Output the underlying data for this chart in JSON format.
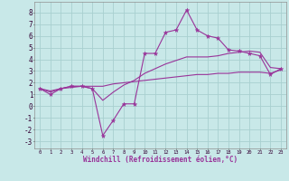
{
  "xlabel": "Windchill (Refroidissement éolien,°C)",
  "background_color": "#c8e8e8",
  "grid_color": "#a8d0d0",
  "line_color": "#993399",
  "x_ticks": [
    0,
    1,
    2,
    3,
    4,
    5,
    6,
    7,
    8,
    9,
    10,
    11,
    12,
    13,
    14,
    15,
    16,
    17,
    18,
    19,
    20,
    21,
    22,
    23
  ],
  "y_ticks": [
    -3,
    -2,
    -1,
    0,
    1,
    2,
    3,
    4,
    5,
    6,
    7,
    8
  ],
  "ylim": [
    -3.6,
    8.9
  ],
  "xlim": [
    -0.5,
    23.5
  ],
  "raw": {
    "x": [
      0,
      1,
      2,
      3,
      4,
      5,
      6,
      7,
      8,
      9,
      10,
      11,
      12,
      13,
      14,
      15,
      16,
      17,
      18,
      19,
      20,
      21,
      22,
      23
    ],
    "y": [
      1.5,
      1.0,
      1.5,
      1.7,
      1.7,
      1.5,
      -2.5,
      -1.2,
      0.2,
      0.2,
      4.5,
      4.5,
      6.3,
      6.5,
      8.2,
      6.5,
      6.0,
      5.8,
      4.8,
      4.7,
      4.5,
      4.3,
      2.7,
      3.2
    ]
  },
  "smooth1": {
    "x": [
      0,
      1,
      2,
      3,
      4,
      5,
      6,
      7,
      8,
      9,
      10,
      11,
      12,
      13,
      14,
      15,
      16,
      17,
      18,
      19,
      20,
      21,
      22,
      23
    ],
    "y": [
      1.5,
      1.2,
      1.5,
      1.7,
      1.7,
      1.5,
      0.5,
      1.2,
      1.8,
      2.2,
      2.8,
      3.2,
      3.6,
      3.9,
      4.2,
      4.2,
      4.2,
      4.3,
      4.5,
      4.6,
      4.7,
      4.6,
      3.3,
      3.2
    ]
  },
  "smooth2": {
    "x": [
      0,
      1,
      2,
      3,
      4,
      5,
      6,
      7,
      8,
      9,
      10,
      11,
      12,
      13,
      14,
      15,
      16,
      17,
      18,
      19,
      20,
      21,
      22,
      23
    ],
    "y": [
      1.5,
      1.3,
      1.5,
      1.6,
      1.7,
      1.7,
      1.7,
      1.9,
      2.0,
      2.1,
      2.2,
      2.3,
      2.4,
      2.5,
      2.6,
      2.7,
      2.7,
      2.8,
      2.8,
      2.9,
      2.9,
      2.9,
      2.8,
      3.1
    ]
  }
}
